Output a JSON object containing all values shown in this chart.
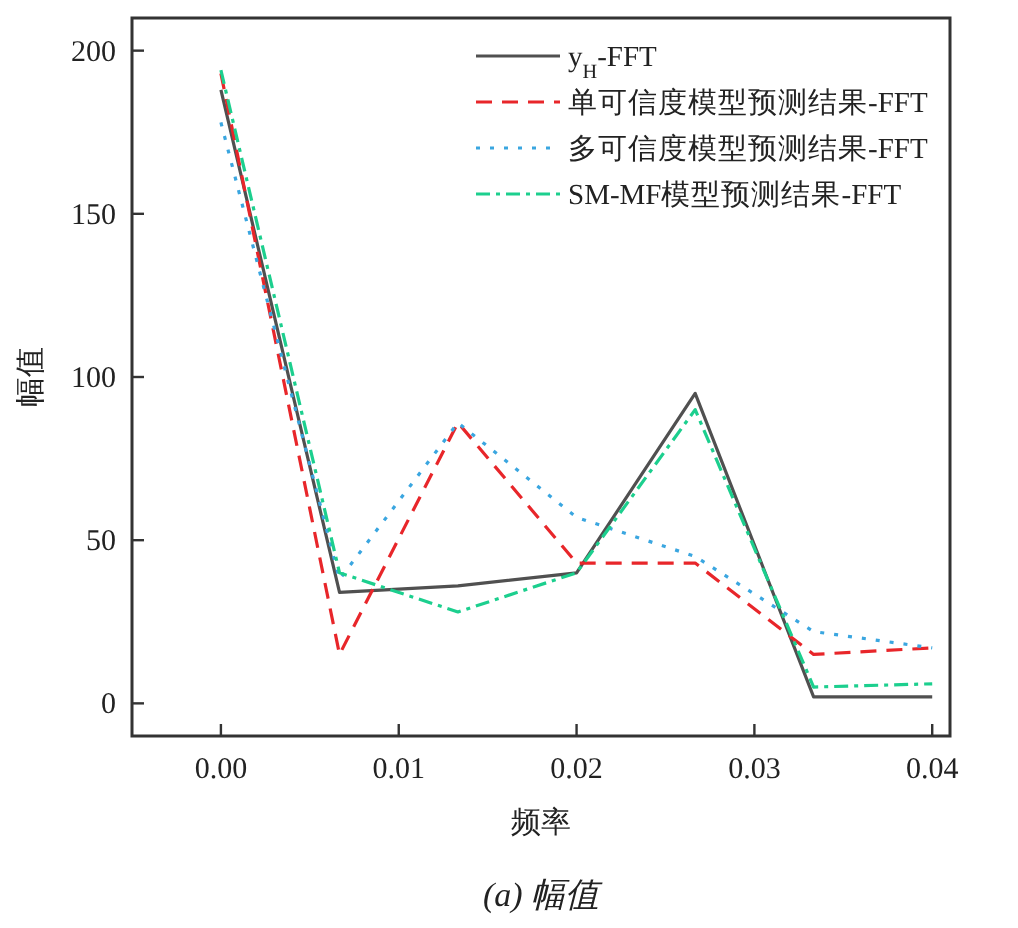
{
  "chart_data": {
    "type": "line",
    "xlabel": "频率",
    "ylabel": "幅值",
    "annotations": [
      "(a) 幅值"
    ],
    "x": [
      0,
      0.00667,
      0.01333,
      0.02,
      0.02667,
      0.03333,
      0.04
    ],
    "xlim": [
      -0.005,
      0.041
    ],
    "ylim": [
      -10,
      210
    ],
    "xticks": [
      {
        "value": 0,
        "label": "0.00"
      },
      {
        "value": 0.01,
        "label": "0.01"
      },
      {
        "value": 0.02,
        "label": "0.02"
      },
      {
        "value": 0.03,
        "label": "0.03"
      },
      {
        "value": 0.04,
        "label": "0.04"
      }
    ],
    "yticks": [
      0,
      50,
      100,
      150,
      200
    ],
    "legend": "top right",
    "grid": false,
    "series": [
      {
        "name": "y$_{H}$-FFT",
        "color": "#505050",
        "line_style": "solid",
        "values": [
          188,
          34,
          36,
          40,
          95,
          2,
          2
        ]
      },
      {
        "name": "单可信度模型预测结果-FFT",
        "color": "#e8262a",
        "line_style": "dashed",
        "values": [
          193,
          15,
          86,
          43,
          43,
          15,
          17
        ]
      },
      {
        "name": "多可信度模型预测结果-FFT",
        "color": "#3aa6e0",
        "line_style": "dotted",
        "values": [
          178,
          38,
          86,
          57,
          45,
          22,
          17
        ]
      },
      {
        "name": "SM-MF模型预测结果-FFT",
        "color": "#1ccf8e",
        "line_style": "dashdot",
        "values": [
          194,
          40,
          28,
          40,
          90,
          5,
          6
        ]
      }
    ]
  }
}
